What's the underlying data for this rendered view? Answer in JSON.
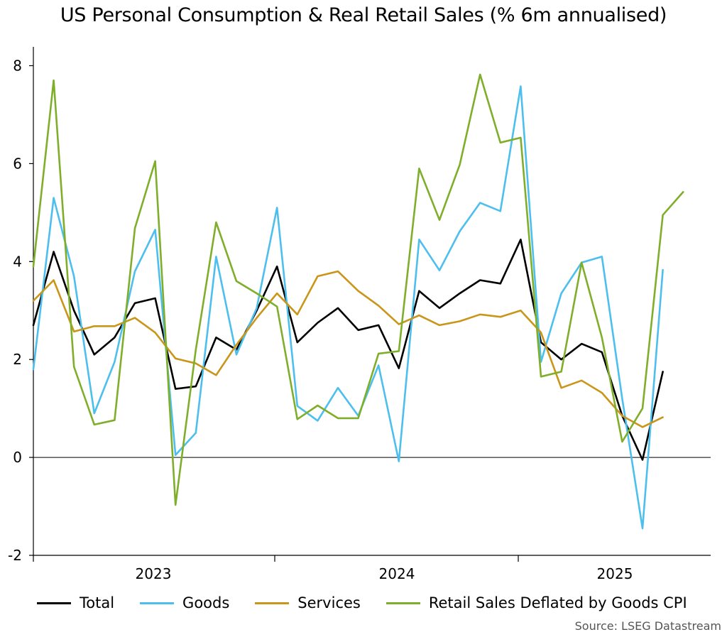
{
  "title": "US Personal Consumption & Real Retail Sales (% 6m annualised)",
  "source": "Source: LSEG Datastream",
  "chart_data": {
    "type": "line",
    "title": "US Personal Consumption & Real Retail Sales (% 6m annualised)",
    "xlabel": "",
    "ylabel": "",
    "x_start_month": "2022-08",
    "x_end_month": "2025-06",
    "year_labels": [
      "2023",
      "2024",
      "2025"
    ],
    "ylim": [
      -2,
      8
    ],
    "yticks": [
      -2,
      0,
      2,
      4,
      6,
      8
    ],
    "legend_position": "bottom",
    "series": [
      {
        "name": "Total",
        "color": "#000000",
        "start_index": 0,
        "values": [
          2.7,
          4.2,
          3.0,
          2.1,
          2.45,
          3.15,
          3.25,
          1.4,
          1.45,
          2.45,
          2.2,
          3.0,
          3.9,
          2.35,
          2.75,
          3.05,
          2.6,
          2.7,
          1.82,
          3.4,
          3.05,
          3.35,
          3.62,
          3.55,
          4.45,
          2.35,
          2.0,
          2.32,
          2.15,
          0.85,
          -0.05,
          1.75
        ]
      },
      {
        "name": "Goods",
        "color": "#4dbfee",
        "start_index": 0,
        "values": [
          1.8,
          5.3,
          3.7,
          0.9,
          1.95,
          3.8,
          4.65,
          0.05,
          0.5,
          4.1,
          2.1,
          3.05,
          5.1,
          1.05,
          0.75,
          1.42,
          0.85,
          1.88,
          -0.08,
          4.45,
          3.82,
          4.62,
          5.2,
          5.03,
          7.58,
          1.95,
          3.35,
          3.98,
          4.1,
          1.2,
          -1.45,
          3.83
        ]
      },
      {
        "name": "Services",
        "color": "#c9961a",
        "start_index": 0,
        "values": [
          3.2,
          3.62,
          2.57,
          2.68,
          2.68,
          2.85,
          2.55,
          2.02,
          1.92,
          1.68,
          2.3,
          2.85,
          3.35,
          2.92,
          3.7,
          3.8,
          3.4,
          3.1,
          2.72,
          2.9,
          2.7,
          2.78,
          2.92,
          2.87,
          3.0,
          2.55,
          1.42,
          1.57,
          1.32,
          0.85,
          0.62,
          0.82
        ]
      },
      {
        "name": "Retail Sales Deflated by Goods CPI",
        "color": "#7fae2a",
        "start_index": 0,
        "values": [
          3.9,
          7.7,
          1.85,
          0.67,
          0.76,
          4.68,
          6.05,
          -0.97,
          2.2,
          4.8,
          3.6,
          3.35,
          3.08,
          0.78,
          1.06,
          0.8,
          0.8,
          2.12,
          2.17,
          5.9,
          4.85,
          5.98,
          7.82,
          6.43,
          6.53,
          1.65,
          1.75,
          3.98,
          2.45,
          0.32,
          1.0,
          4.95,
          5.42
        ]
      }
    ]
  }
}
